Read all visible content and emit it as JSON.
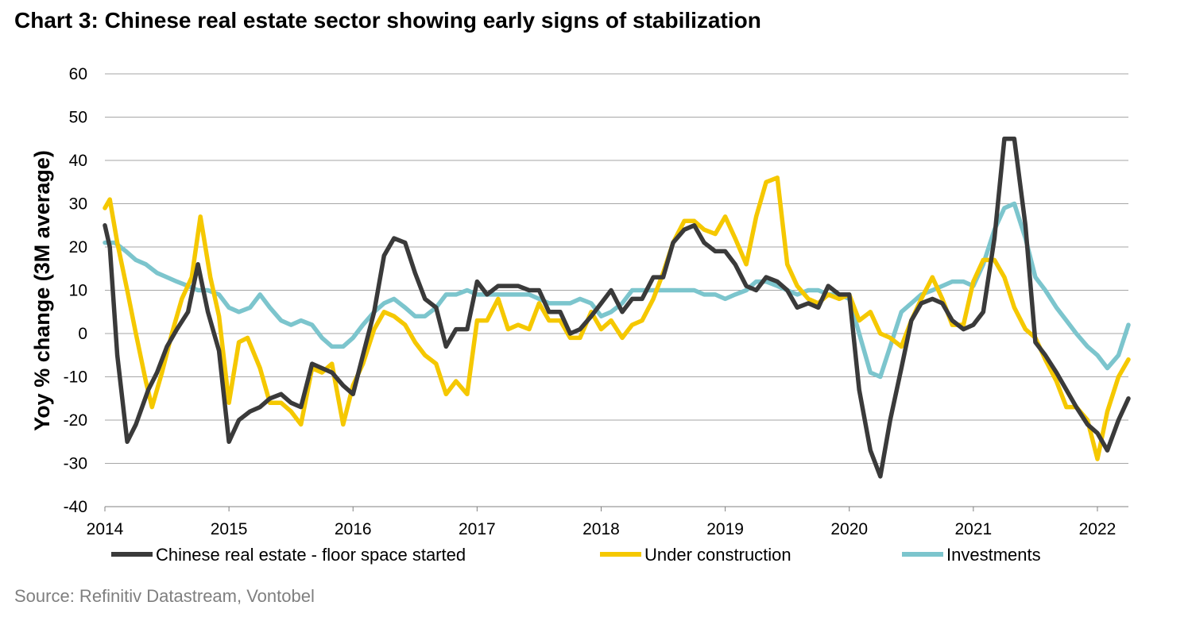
{
  "title": "Chart 3: Chinese real estate sector showing early signs of stabilization",
  "source": "Source: Refinitiv Datastream, Vontobel",
  "chart_data": {
    "type": "line",
    "ylabel": "Yoy % change (3M average)",
    "xlabel": "",
    "ylim": [
      -40,
      60
    ],
    "xlim": [
      2014,
      2022.25
    ],
    "yticks": [
      60,
      50,
      40,
      30,
      20,
      10,
      0,
      -10,
      -20,
      -30,
      -40
    ],
    "xticks": [
      "2014",
      "2015",
      "2016",
      "2017",
      "2018",
      "2019",
      "2020",
      "2021",
      "2022"
    ],
    "grid": "horizontal",
    "legend_position": "bottom",
    "series": [
      {
        "name": "Chinese real estate - floor space started",
        "color": "#3a3a3a",
        "points": [
          [
            2014.0,
            25
          ],
          [
            2014.04,
            20
          ],
          [
            2014.1,
            -5
          ],
          [
            2014.18,
            -25
          ],
          [
            2014.25,
            -21
          ],
          [
            2014.35,
            -13
          ],
          [
            2014.42,
            -9
          ],
          [
            2014.5,
            -3
          ],
          [
            2014.58,
            1
          ],
          [
            2014.67,
            5
          ],
          [
            2014.75,
            16
          ],
          [
            2014.83,
            5
          ],
          [
            2014.92,
            -4
          ],
          [
            2015.0,
            -25
          ],
          [
            2015.08,
            -20
          ],
          [
            2015.17,
            -18
          ],
          [
            2015.25,
            -17
          ],
          [
            2015.33,
            -15
          ],
          [
            2015.42,
            -14
          ],
          [
            2015.5,
            -16
          ],
          [
            2015.58,
            -17
          ],
          [
            2015.67,
            -7
          ],
          [
            2015.75,
            -8
          ],
          [
            2015.83,
            -9
          ],
          [
            2015.92,
            -12
          ],
          [
            2016.0,
            -14
          ],
          [
            2016.08,
            -5
          ],
          [
            2016.17,
            5
          ],
          [
            2016.25,
            18
          ],
          [
            2016.33,
            22
          ],
          [
            2016.42,
            21
          ],
          [
            2016.5,
            14
          ],
          [
            2016.58,
            8
          ],
          [
            2016.67,
            6
          ],
          [
            2016.75,
            -3
          ],
          [
            2016.83,
            1
          ],
          [
            2016.92,
            1
          ],
          [
            2017.0,
            12
          ],
          [
            2017.08,
            9
          ],
          [
            2017.17,
            11
          ],
          [
            2017.25,
            11
          ],
          [
            2017.33,
            11
          ],
          [
            2017.42,
            10
          ],
          [
            2017.5,
            10
          ],
          [
            2017.58,
            5
          ],
          [
            2017.67,
            5
          ],
          [
            2017.75,
            0
          ],
          [
            2017.83,
            1
          ],
          [
            2017.92,
            4
          ],
          [
            2018.0,
            7
          ],
          [
            2018.08,
            10
          ],
          [
            2018.17,
            5
          ],
          [
            2018.25,
            8
          ],
          [
            2018.33,
            8
          ],
          [
            2018.42,
            13
          ],
          [
            2018.5,
            13
          ],
          [
            2018.58,
            21
          ],
          [
            2018.67,
            24
          ],
          [
            2018.75,
            25
          ],
          [
            2018.83,
            21
          ],
          [
            2018.92,
            19
          ],
          [
            2019.0,
            19
          ],
          [
            2019.08,
            16
          ],
          [
            2019.17,
            11
          ],
          [
            2019.25,
            10
          ],
          [
            2019.33,
            13
          ],
          [
            2019.42,
            12
          ],
          [
            2019.5,
            10
          ],
          [
            2019.58,
            6
          ],
          [
            2019.67,
            7
          ],
          [
            2019.75,
            6
          ],
          [
            2019.83,
            11
          ],
          [
            2019.92,
            9
          ],
          [
            2020.0,
            9
          ],
          [
            2020.08,
            -13
          ],
          [
            2020.17,
            -27
          ],
          [
            2020.25,
            -33
          ],
          [
            2020.33,
            -20
          ],
          [
            2020.42,
            -8
          ],
          [
            2020.5,
            3
          ],
          [
            2020.58,
            7
          ],
          [
            2020.67,
            8
          ],
          [
            2020.75,
            7
          ],
          [
            2020.83,
            3
          ],
          [
            2020.92,
            1
          ],
          [
            2021.0,
            2
          ],
          [
            2021.08,
            5
          ],
          [
            2021.17,
            22
          ],
          [
            2021.25,
            45
          ],
          [
            2021.33,
            45
          ],
          [
            2021.42,
            25
          ],
          [
            2021.5,
            -2
          ],
          [
            2021.58,
            -5
          ],
          [
            2021.67,
            -9
          ],
          [
            2021.75,
            -13
          ],
          [
            2021.83,
            -17
          ],
          [
            2021.92,
            -21
          ],
          [
            2022.0,
            -23
          ],
          [
            2022.08,
            -27
          ],
          [
            2022.17,
            -20
          ],
          [
            2022.25,
            -15
          ]
        ]
      },
      {
        "name": "Under construction",
        "color": "#f5c800",
        "points": [
          [
            2014.0,
            29
          ],
          [
            2014.04,
            31
          ],
          [
            2014.1,
            21
          ],
          [
            2014.18,
            10
          ],
          [
            2014.25,
            0
          ],
          [
            2014.33,
            -11
          ],
          [
            2014.38,
            -17
          ],
          [
            2014.46,
            -9
          ],
          [
            2014.54,
            0
          ],
          [
            2014.62,
            8
          ],
          [
            2014.7,
            13
          ],
          [
            2014.77,
            27
          ],
          [
            2014.85,
            13
          ],
          [
            2014.92,
            4
          ],
          [
            2015.0,
            -16
          ],
          [
            2015.08,
            -2
          ],
          [
            2015.15,
            -1
          ],
          [
            2015.25,
            -8
          ],
          [
            2015.33,
            -16
          ],
          [
            2015.42,
            -16
          ],
          [
            2015.5,
            -18
          ],
          [
            2015.58,
            -21
          ],
          [
            2015.67,
            -8
          ],
          [
            2015.75,
            -9
          ],
          [
            2015.83,
            -7
          ],
          [
            2015.92,
            -21
          ],
          [
            2016.0,
            -12
          ],
          [
            2016.08,
            -7
          ],
          [
            2016.17,
            1
          ],
          [
            2016.25,
            5
          ],
          [
            2016.33,
            4
          ],
          [
            2016.42,
            2
          ],
          [
            2016.5,
            -2
          ],
          [
            2016.58,
            -5
          ],
          [
            2016.67,
            -7
          ],
          [
            2016.75,
            -14
          ],
          [
            2016.83,
            -11
          ],
          [
            2016.92,
            -14
          ],
          [
            2017.0,
            3
          ],
          [
            2017.08,
            3
          ],
          [
            2017.17,
            8
          ],
          [
            2017.25,
            1
          ],
          [
            2017.33,
            2
          ],
          [
            2017.42,
            1
          ],
          [
            2017.5,
            7
          ],
          [
            2017.58,
            3
          ],
          [
            2017.67,
            3
          ],
          [
            2017.75,
            -1
          ],
          [
            2017.83,
            -1
          ],
          [
            2017.92,
            5
          ],
          [
            2018.0,
            1
          ],
          [
            2018.08,
            3
          ],
          [
            2018.17,
            -1
          ],
          [
            2018.25,
            2
          ],
          [
            2018.33,
            3
          ],
          [
            2018.42,
            8
          ],
          [
            2018.5,
            14
          ],
          [
            2018.58,
            21
          ],
          [
            2018.67,
            26
          ],
          [
            2018.75,
            26
          ],
          [
            2018.83,
            24
          ],
          [
            2018.92,
            23
          ],
          [
            2019.0,
            27
          ],
          [
            2019.08,
            22
          ],
          [
            2019.17,
            16
          ],
          [
            2019.25,
            27
          ],
          [
            2019.33,
            35
          ],
          [
            2019.42,
            36
          ],
          [
            2019.5,
            16
          ],
          [
            2019.58,
            11
          ],
          [
            2019.67,
            8
          ],
          [
            2019.75,
            7
          ],
          [
            2019.83,
            9
          ],
          [
            2019.92,
            8
          ],
          [
            2020.0,
            9
          ],
          [
            2020.08,
            3
          ],
          [
            2020.17,
            5
          ],
          [
            2020.25,
            0
          ],
          [
            2020.33,
            -1
          ],
          [
            2020.42,
            -3
          ],
          [
            2020.5,
            3
          ],
          [
            2020.58,
            8
          ],
          [
            2020.67,
            13
          ],
          [
            2020.75,
            8
          ],
          [
            2020.83,
            2
          ],
          [
            2020.92,
            2
          ],
          [
            2021.0,
            12
          ],
          [
            2021.08,
            17
          ],
          [
            2021.17,
            17
          ],
          [
            2021.25,
            13
          ],
          [
            2021.33,
            6
          ],
          [
            2021.42,
            1
          ],
          [
            2021.5,
            -1
          ],
          [
            2021.58,
            -6
          ],
          [
            2021.67,
            -11
          ],
          [
            2021.75,
            -17
          ],
          [
            2021.83,
            -17
          ],
          [
            2021.92,
            -20
          ],
          [
            2022.0,
            -29
          ],
          [
            2022.08,
            -18
          ],
          [
            2022.17,
            -10
          ],
          [
            2022.25,
            -6
          ]
        ]
      },
      {
        "name": "Investments",
        "color": "#7cc5cd",
        "points": [
          [
            2014.0,
            21
          ],
          [
            2014.08,
            21
          ],
          [
            2014.17,
            19
          ],
          [
            2014.25,
            17
          ],
          [
            2014.33,
            16
          ],
          [
            2014.42,
            14
          ],
          [
            2014.5,
            13
          ],
          [
            2014.58,
            12
          ],
          [
            2014.67,
            11
          ],
          [
            2014.75,
            10
          ],
          [
            2014.83,
            10
          ],
          [
            2014.92,
            9
          ],
          [
            2015.0,
            6
          ],
          [
            2015.08,
            5
          ],
          [
            2015.17,
            6
          ],
          [
            2015.25,
            9
          ],
          [
            2015.33,
            6
          ],
          [
            2015.42,
            3
          ],
          [
            2015.5,
            2
          ],
          [
            2015.58,
            3
          ],
          [
            2015.67,
            2
          ],
          [
            2015.75,
            -1
          ],
          [
            2015.83,
            -3
          ],
          [
            2015.92,
            -3
          ],
          [
            2016.0,
            -1
          ],
          [
            2016.08,
            2
          ],
          [
            2016.17,
            5
          ],
          [
            2016.25,
            7
          ],
          [
            2016.33,
            8
          ],
          [
            2016.42,
            6
          ],
          [
            2016.5,
            4
          ],
          [
            2016.58,
            4
          ],
          [
            2016.67,
            6
          ],
          [
            2016.75,
            9
          ],
          [
            2016.83,
            9
          ],
          [
            2016.92,
            10
          ],
          [
            2017.0,
            9
          ],
          [
            2017.08,
            9
          ],
          [
            2017.17,
            9
          ],
          [
            2017.25,
            9
          ],
          [
            2017.33,
            9
          ],
          [
            2017.42,
            9
          ],
          [
            2017.5,
            8
          ],
          [
            2017.58,
            7
          ],
          [
            2017.67,
            7
          ],
          [
            2017.75,
            7
          ],
          [
            2017.83,
            8
          ],
          [
            2017.92,
            7
          ],
          [
            2018.0,
            4
          ],
          [
            2018.08,
            5
          ],
          [
            2018.17,
            7
          ],
          [
            2018.25,
            10
          ],
          [
            2018.33,
            10
          ],
          [
            2018.42,
            10
          ],
          [
            2018.5,
            10
          ],
          [
            2018.58,
            10
          ],
          [
            2018.67,
            10
          ],
          [
            2018.75,
            10
          ],
          [
            2018.83,
            9
          ],
          [
            2018.92,
            9
          ],
          [
            2019.0,
            8
          ],
          [
            2019.08,
            9
          ],
          [
            2019.17,
            10
          ],
          [
            2019.25,
            12
          ],
          [
            2019.33,
            12
          ],
          [
            2019.42,
            11
          ],
          [
            2019.5,
            10
          ],
          [
            2019.58,
            9
          ],
          [
            2019.67,
            10
          ],
          [
            2019.75,
            10
          ],
          [
            2019.83,
            9
          ],
          [
            2019.92,
            9
          ],
          [
            2020.0,
            8
          ],
          [
            2020.08,
            0
          ],
          [
            2020.17,
            -9
          ],
          [
            2020.25,
            -10
          ],
          [
            2020.33,
            -3
          ],
          [
            2020.42,
            5
          ],
          [
            2020.5,
            7
          ],
          [
            2020.58,
            9
          ],
          [
            2020.67,
            10
          ],
          [
            2020.75,
            11
          ],
          [
            2020.83,
            12
          ],
          [
            2020.92,
            12
          ],
          [
            2021.0,
            11
          ],
          [
            2021.08,
            16
          ],
          [
            2021.17,
            24
          ],
          [
            2021.25,
            29
          ],
          [
            2021.33,
            30
          ],
          [
            2021.42,
            22
          ],
          [
            2021.5,
            13
          ],
          [
            2021.58,
            10
          ],
          [
            2021.67,
            6
          ],
          [
            2021.75,
            3
          ],
          [
            2021.83,
            0
          ],
          [
            2021.92,
            -3
          ],
          [
            2022.0,
            -5
          ],
          [
            2022.08,
            -8
          ],
          [
            2022.17,
            -5
          ],
          [
            2022.25,
            2
          ]
        ]
      }
    ]
  }
}
